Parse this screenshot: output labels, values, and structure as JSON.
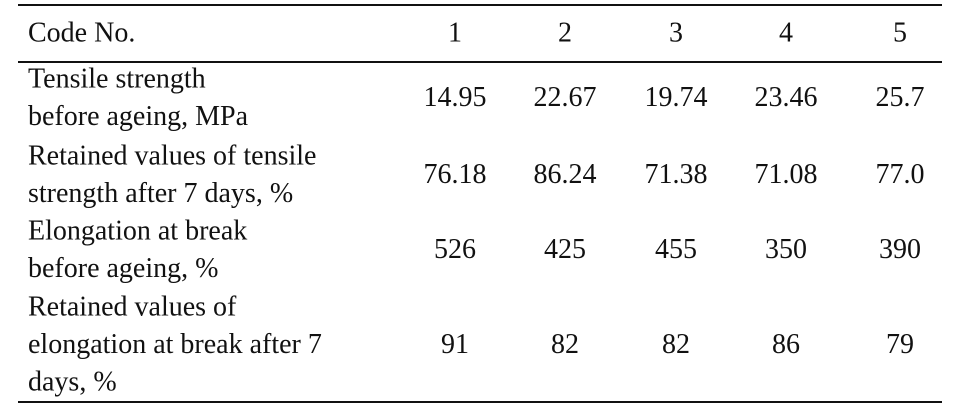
{
  "table": {
    "header": [
      "Code No.",
      "1",
      "2",
      "3",
      "4",
      "5"
    ],
    "rows": [
      {
        "label": [
          "Tensile strength",
          "before ageing, MPa"
        ],
        "values": [
          "14.95",
          "22.67",
          "19.74",
          "23.46",
          "25.7"
        ]
      },
      {
        "label": [
          "Retained values of tensile",
          "strength after 7 days, %"
        ],
        "values": [
          "76.18",
          "86.24",
          "71.38",
          "71.08",
          "77.0"
        ]
      },
      {
        "label": [
          "Elongation at break",
          "before ageing, %"
        ],
        "values": [
          "526",
          "425",
          "455",
          "350",
          "390"
        ]
      },
      {
        "label": [
          "Retained values of",
          "elongation at break after 7",
          "days, %"
        ],
        "values": [
          "91",
          "82",
          "82",
          "86",
          "79"
        ]
      }
    ]
  }
}
